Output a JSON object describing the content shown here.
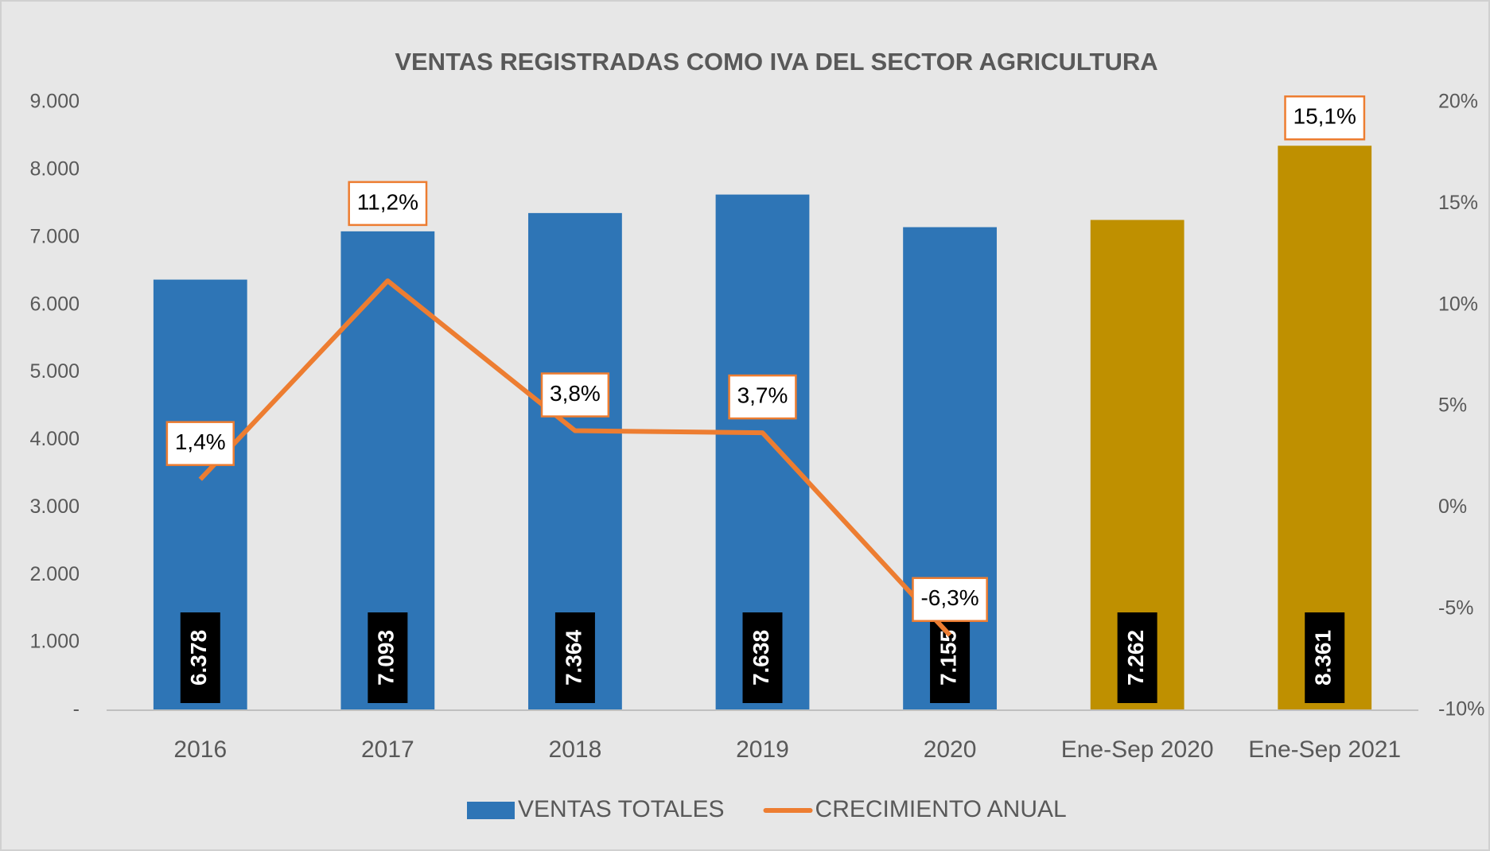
{
  "chart_data": {
    "type": "bar_line",
    "title": "VENTAS REGISTRADAS COMO IVA DEL SECTOR AGRICULTURA",
    "categories": [
      "2016",
      "2017",
      "2018",
      "2019",
      "2020",
      "Ene-Sep 2020",
      "Ene-Sep 2021"
    ],
    "series": [
      {
        "name": "VENTAS TOTALES",
        "type": "bar",
        "color": "#2e75b6",
        "point_colors": [
          "#2e75b6",
          "#2e75b6",
          "#2e75b6",
          "#2e75b6",
          "#2e75b6",
          "#bf9000",
          "#bf9000"
        ],
        "values": [
          6378,
          7093,
          7364,
          7638,
          7155,
          7262,
          8361
        ],
        "value_labels": [
          "6.378",
          "7.093",
          "7.364",
          "7.638",
          "7.155",
          "7.262",
          "8.361"
        ]
      },
      {
        "name": "CRECIMIENTO ANUAL",
        "type": "line",
        "axis": "y2",
        "color": "#ed7d31",
        "values": [
          1.4,
          11.2,
          3.8,
          3.7,
          -6.3,
          null,
          15.1
        ],
        "value_labels": [
          "1,4%",
          "11,2%",
          "3,8%",
          "3,7%",
          "-6,3%",
          null,
          "15,1%"
        ]
      }
    ],
    "ylim": [
      0,
      9000
    ],
    "yticks": [
      {
        "value": 0,
        "label": "-"
      },
      {
        "value": 1000,
        "label": "1.000"
      },
      {
        "value": 2000,
        "label": "2.000"
      },
      {
        "value": 3000,
        "label": "3.000"
      },
      {
        "value": 4000,
        "label": "4.000"
      },
      {
        "value": 5000,
        "label": "5.000"
      },
      {
        "value": 6000,
        "label": "6.000"
      },
      {
        "value": 7000,
        "label": "7.000"
      },
      {
        "value": 8000,
        "label": "8.000"
      },
      {
        "value": 9000,
        "label": "9.000"
      }
    ],
    "y2lim": [
      -10,
      20
    ],
    "y2ticks": [
      {
        "value": -10,
        "label": "-10%"
      },
      {
        "value": -5,
        "label": "-5%"
      },
      {
        "value": 0,
        "label": "0%"
      },
      {
        "value": 5,
        "label": "5%"
      },
      {
        "value": 10,
        "label": "10%"
      },
      {
        "value": 15,
        "label": "15%"
      },
      {
        "value": 20,
        "label": "20%"
      }
    ],
    "grid": false,
    "legend": "bottom"
  }
}
